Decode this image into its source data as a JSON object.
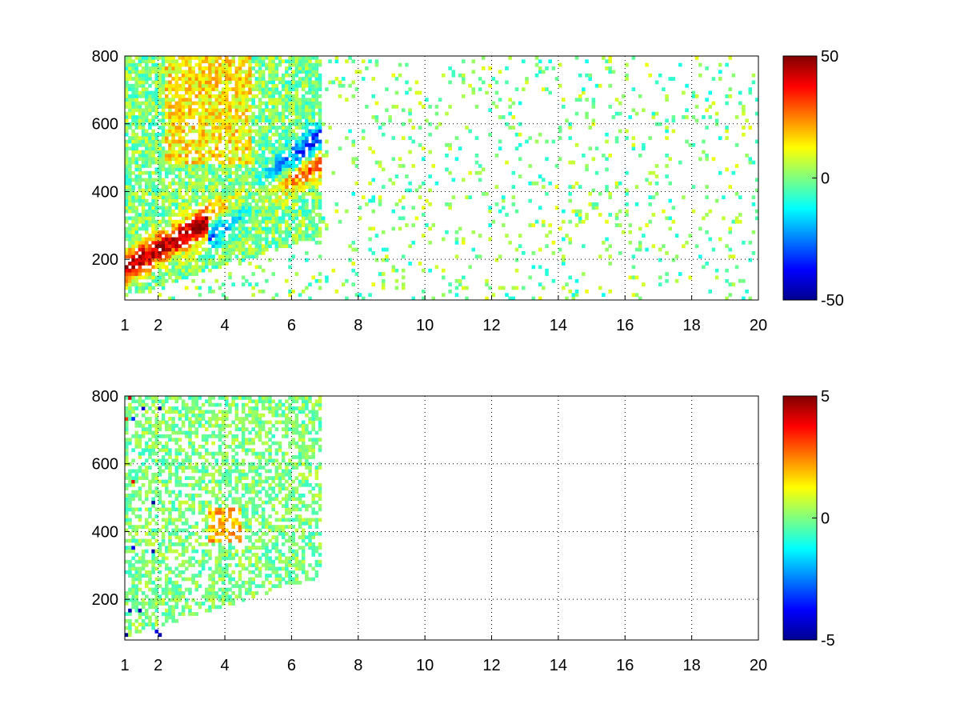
{
  "chart_data": [
    {
      "type": "heatmap",
      "xlabel": "",
      "ylabel": "",
      "xlim": [
        1,
        20
      ],
      "ylim": [
        80,
        800
      ],
      "x_ticks": [
        1,
        2,
        4,
        6,
        8,
        10,
        12,
        14,
        16,
        18,
        20
      ],
      "y_ticks": [
        200,
        400,
        600,
        800
      ],
      "grid": true,
      "colormap": "jet",
      "color_limits": [
        -50,
        50
      ],
      "colorbar_ticks": [
        50,
        0,
        -50
      ],
      "colorbar_placement": "right",
      "features": [
        {
          "description_values": {
            "x_start": 2.0,
            "x_end": 6.8,
            "y_start": 230,
            "y_end": 470
          },
          "sign": "positive",
          "peak": 45
        },
        {
          "description_values": {
            "x_start": 3.5,
            "x_end": 6.8,
            "y_start": 280,
            "y_end": 560
          },
          "sign": "negative",
          "peak": -45
        },
        {
          "description_values": {
            "x_start": 2.2,
            "x_end": 4.8,
            "y_start": 480,
            "y_end": 800
          },
          "sign": "positive",
          "peak": 15
        }
      ]
    },
    {
      "type": "heatmap",
      "xlabel": "",
      "ylabel": "",
      "xlim": [
        1,
        20
      ],
      "ylim": [
        80,
        800
      ],
      "x_ticks": [
        1,
        2,
        4,
        6,
        8,
        10,
        12,
        14,
        16,
        18,
        20
      ],
      "y_ticks": [
        200,
        400,
        600,
        800
      ],
      "grid": true,
      "colormap": "jet",
      "color_limits": [
        -5,
        5
      ],
      "colorbar_ticks": [
        5,
        0,
        -5
      ],
      "colorbar_placement": "right",
      "features": [
        {
          "description_values": {
            "x_start": 2.0,
            "x_end": 6.8,
            "y_start": 100,
            "y_end": 800
          },
          "sign": "near-zero",
          "peak": 0.5
        },
        {
          "description_values": {
            "x_start": 3.5,
            "x_end": 4.5,
            "y_start": 370,
            "y_end": 470
          },
          "sign": "positive",
          "peak": 2
        }
      ]
    }
  ]
}
